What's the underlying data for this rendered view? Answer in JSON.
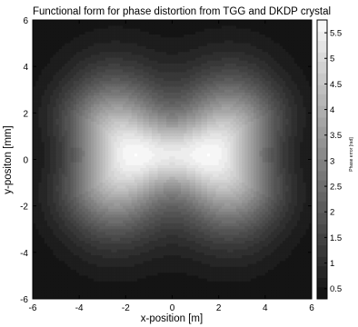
{
  "chart_data": {
    "type": "heatmap",
    "title": "Functional form for phase distortion from TGG and DKDP crystal",
    "xlabel": "x-position [m]",
    "ylabel": "y-positon [mm]",
    "colorbar_label": "Phase error [rad]",
    "xlim": [
      -6,
      6
    ],
    "ylim": [
      -6,
      6
    ],
    "x_ticks": [
      -6,
      -4,
      -2,
      0,
      2,
      4,
      6
    ],
    "y_ticks": [
      -6,
      -4,
      -2,
      0,
      2,
      4,
      6
    ],
    "color_range": [
      0.3,
      5.75
    ],
    "colorbar_ticks": [
      0.5,
      1,
      1.5,
      2,
      2.5,
      3,
      3.5,
      4,
      4.5,
      5,
      5.5
    ],
    "colormap": "grayscale (dark = low, white = high)",
    "contour_levels": 26,
    "lobes": [
      {
        "x": -2.5,
        "y": 0.2,
        "peak": 5.75
      },
      {
        "x": 2.5,
        "y": 0.2,
        "peak": 5.75
      }
    ],
    "center_value": 4.3,
    "corner_value": 0.3,
    "grid": false
  }
}
